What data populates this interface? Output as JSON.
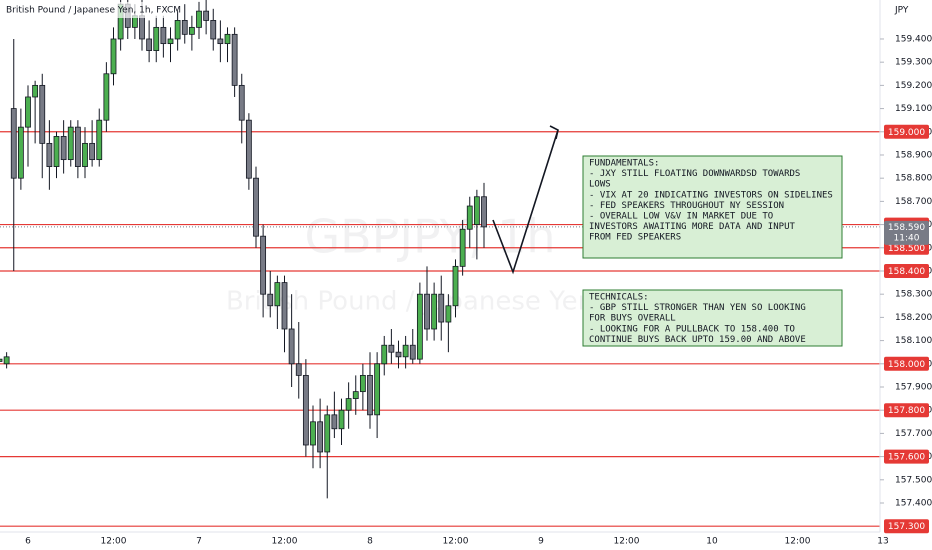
{
  "chart_data": {
    "type": "candlestick",
    "title": "British Pound / Japanese Yen, 1h, FXCM",
    "watermark": "GBPJPY, 1h",
    "watermark_subtitle": "British Pound / Japanese Yen",
    "currency": "JPY",
    "up_color": "#4caf50",
    "down_color": "#787b86",
    "level_color": "#e53935",
    "grid": false,
    "ylim": [
      157.275,
      159.568
    ],
    "yticks": [
      {
        "value": 157.4,
        "label": "157.400"
      },
      {
        "value": 157.5,
        "label": "157.500"
      },
      {
        "value": 157.6,
        "label": "157.600"
      },
      {
        "value": 157.7,
        "label": "157.700"
      },
      {
        "value": 157.8,
        "label": "157.800"
      },
      {
        "value": 157.9,
        "label": "157.900"
      },
      {
        "value": 158.0,
        "label": "158.000"
      },
      {
        "value": 158.1,
        "label": "158.100"
      },
      {
        "value": 158.2,
        "label": "158.200"
      },
      {
        "value": 158.3,
        "label": "158.300"
      },
      {
        "value": 158.4,
        "label": "158.400"
      },
      {
        "value": 158.5,
        "label": "158.500"
      },
      {
        "value": 158.6,
        "label": "158.600"
      },
      {
        "value": 158.7,
        "label": "158.700"
      },
      {
        "value": 158.8,
        "label": "158.800"
      },
      {
        "value": 158.9,
        "label": "158.900"
      },
      {
        "value": 159.0,
        "label": "159.000"
      },
      {
        "value": 159.1,
        "label": "159.100"
      },
      {
        "value": 159.2,
        "label": "159.200"
      },
      {
        "value": 159.3,
        "label": "159.300"
      },
      {
        "value": 159.4,
        "label": "159.400"
      }
    ],
    "levels": [
      {
        "value": 159.0,
        "label": "159.000"
      },
      {
        "value": 158.6,
        "label": "158.600"
      },
      {
        "value": 158.5,
        "label": "158.500"
      },
      {
        "value": 158.4,
        "label": "158.400"
      },
      {
        "value": 158.0,
        "label": "158.000"
      },
      {
        "value": 157.8,
        "label": "157.800"
      },
      {
        "value": 157.6,
        "label": "157.600"
      },
      {
        "value": 157.3,
        "label": "157.300"
      }
    ],
    "last_price": {
      "value": 158.59,
      "label": "158.590",
      "countdown": "11:40"
    },
    "categories": [
      null,
      null,
      null,
      null,
      "6",
      null,
      null,
      null,
      null,
      null,
      null,
      null,
      null,
      null,
      null,
      null,
      "12:00",
      null,
      null,
      null,
      null,
      null,
      null,
      null,
      null,
      null,
      null,
      null,
      "7",
      null,
      null,
      null,
      null,
      null,
      null,
      null,
      null,
      null,
      null,
      null,
      "12:00",
      null,
      null,
      null,
      null,
      null,
      null,
      null,
      null,
      null,
      null,
      null,
      "8",
      null,
      null,
      null,
      null,
      null,
      null,
      null,
      null,
      null,
      null,
      null,
      "12:00",
      null,
      null,
      null,
      null,
      null,
      null,
      null,
      null,
      null,
      null,
      null,
      "9",
      null,
      null,
      null,
      null,
      null,
      null,
      null,
      null,
      null,
      null,
      null,
      "12:00",
      null,
      null,
      null,
      null,
      null,
      null,
      null,
      null,
      null,
      null,
      null,
      "10",
      null,
      null,
      null,
      null,
      null,
      null,
      null,
      null,
      null,
      null,
      null,
      "12:00",
      null,
      null,
      null,
      null,
      null,
      null,
      null,
      null,
      null,
      null,
      null,
      "13"
    ],
    "open": [
      158.01,
      158.0,
      159.1,
      158.8,
      159.02,
      159.15,
      159.2,
      158.95,
      158.85,
      158.98,
      158.88,
      159.02,
      158.85,
      158.95,
      158.88,
      159.05,
      159.25,
      159.4,
      159.55,
      159.45,
      159.5,
      159.4,
      159.35,
      159.45,
      159.38,
      159.4,
      159.48,
      159.42,
      159.45,
      159.52,
      159.48,
      159.4,
      159.38,
      159.42,
      159.2,
      159.05,
      158.8,
      158.55,
      158.3,
      158.25,
      158.35,
      158.15,
      158.0,
      157.95,
      157.65,
      157.75,
      157.62,
      157.78,
      157.72,
      157.8,
      157.85,
      157.88,
      157.95,
      157.78,
      158.0,
      158.08,
      158.05,
      158.03,
      158.08,
      158.02,
      158.3,
      158.15,
      158.3,
      158.18,
      158.25,
      158.42,
      158.58,
      158.6,
      158.72,
      null,
      null,
      null,
      null,
      null,
      null,
      null,
      null,
      null,
      null,
      null,
      null,
      null,
      null,
      null,
      null,
      null,
      null,
      null,
      null,
      null,
      null,
      null,
      null,
      null,
      null,
      null,
      null,
      null,
      null,
      null,
      null,
      null,
      null,
      null,
      null,
      null,
      null,
      null,
      null,
      null,
      null,
      null,
      null,
      null,
      null,
      null,
      null,
      null,
      null,
      null,
      null,
      null,
      null,
      null,
      null
    ],
    "high": [
      158.03,
      158.05,
      159.4,
      159.1,
      159.2,
      159.22,
      159.25,
      159.05,
      159.0,
      159.05,
      159.05,
      159.05,
      159.02,
      159.05,
      159.1,
      159.3,
      159.45,
      159.6,
      159.58,
      159.55,
      159.58,
      159.48,
      159.5,
      159.5,
      159.45,
      159.52,
      159.55,
      159.5,
      159.56,
      159.57,
      159.53,
      159.48,
      159.45,
      159.45,
      159.25,
      159.08,
      158.85,
      158.6,
      158.4,
      158.38,
      158.38,
      158.3,
      158.18,
      158.02,
      157.82,
      157.85,
      157.82,
      157.88,
      157.85,
      157.92,
      157.95,
      158.0,
      158.05,
      158.05,
      158.12,
      158.15,
      158.1,
      158.12,
      158.15,
      158.35,
      158.42,
      158.35,
      158.38,
      158.3,
      158.45,
      158.62,
      158.72,
      158.75,
      158.78,
      null,
      null,
      null,
      null,
      null,
      null,
      null,
      null,
      null,
      null,
      null,
      null,
      null,
      null,
      null,
      null,
      null,
      null,
      null,
      null,
      null,
      null,
      null,
      null,
      null,
      null,
      null,
      null,
      null,
      null,
      null,
      null,
      null,
      null,
      null,
      null,
      null,
      null,
      null,
      null,
      null,
      null,
      null,
      null,
      null,
      null,
      null,
      null,
      null,
      null,
      null,
      null,
      null,
      null,
      null,
      null
    ],
    "low": [
      157.99,
      157.98,
      158.4,
      158.75,
      158.85,
      158.95,
      158.8,
      158.75,
      158.8,
      158.82,
      158.85,
      158.8,
      158.8,
      158.85,
      158.85,
      159.0,
      159.2,
      159.35,
      159.4,
      159.4,
      159.35,
      159.3,
      159.3,
      159.32,
      159.3,
      159.35,
      159.38,
      159.35,
      159.4,
      159.42,
      159.35,
      159.3,
      159.3,
      159.15,
      158.95,
      158.75,
      158.5,
      158.2,
      158.2,
      158.15,
      158.05,
      157.9,
      157.85,
      157.6,
      157.55,
      157.55,
      157.42,
      157.68,
      157.65,
      157.72,
      157.78,
      157.8,
      157.72,
      157.68,
      157.95,
      158.0,
      157.98,
      157.98,
      158.0,
      158.0,
      158.1,
      158.1,
      158.1,
      158.05,
      158.2,
      158.38,
      158.5,
      158.45,
      158.5,
      null,
      null,
      null,
      null,
      null,
      null,
      null,
      null,
      null,
      null,
      null,
      null,
      null,
      null,
      null,
      null,
      null,
      null,
      null,
      null,
      null,
      null,
      null,
      null,
      null,
      null,
      null,
      null,
      null,
      null,
      null,
      null,
      null,
      null,
      null,
      null,
      null,
      null,
      null,
      null,
      null,
      null,
      null,
      null,
      null,
      null,
      null,
      null,
      null,
      null,
      null,
      null,
      null,
      null,
      null,
      null
    ],
    "close": [
      158.02,
      158.03,
      158.8,
      159.02,
      159.15,
      159.2,
      158.95,
      158.85,
      158.98,
      158.88,
      159.02,
      158.85,
      158.95,
      158.88,
      159.05,
      159.25,
      159.4,
      159.55,
      159.45,
      159.5,
      159.4,
      159.35,
      159.45,
      159.38,
      159.4,
      159.48,
      159.42,
      159.45,
      159.52,
      159.48,
      159.4,
      159.38,
      159.42,
      159.2,
      159.05,
      158.8,
      158.55,
      158.3,
      158.25,
      158.35,
      158.15,
      158.0,
      157.95,
      157.65,
      157.75,
      157.62,
      157.78,
      157.72,
      157.8,
      157.85,
      157.88,
      157.95,
      157.78,
      158.0,
      158.08,
      158.05,
      158.03,
      158.08,
      158.02,
      158.3,
      158.15,
      158.3,
      158.18,
      158.25,
      158.42,
      158.58,
      158.68,
      158.72,
      158.59,
      null,
      null,
      null,
      null,
      null,
      null,
      null,
      null,
      null,
      null,
      null,
      null,
      null,
      null,
      null,
      null,
      null,
      null,
      null,
      null,
      null,
      null,
      null,
      null,
      null,
      null,
      null,
      null,
      null,
      null,
      null,
      null,
      null,
      null,
      null,
      null,
      null,
      null,
      null,
      null,
      null,
      null,
      null,
      null,
      null,
      null,
      null,
      null,
      null,
      null,
      null,
      null,
      null,
      null,
      null,
      null
    ],
    "annotations": [
      {
        "lines": [
          "FUNDAMENTALS:",
          "- JXY STILL FLOATING DOWNWARDSD TOWARDS",
          "LOWS",
          "- VIX AT 20 INDICATING INVESTORS ON SIDELINES",
          "- FED SPEAKERS THROUGHOUT NY SESSION",
          "- OVERALL LOW V&V IN MARKET DUE TO",
          "INVESTORS AWAITING MORE DATA AND INPUT",
          "FROM FED SPEAKERS"
        ]
      },
      {
        "lines": [
          "TECHNICALS:",
          "- GBP STILL STRONGER THAN YEN SO LOOKING",
          "FOR BUYS OVERALL",
          "- LOOKING FOR A PULLBACK TO 158.400 TO",
          "CONTINUE BUYS BACK UPTO 159.00 AND ABOVE"
        ]
      }
    ]
  }
}
